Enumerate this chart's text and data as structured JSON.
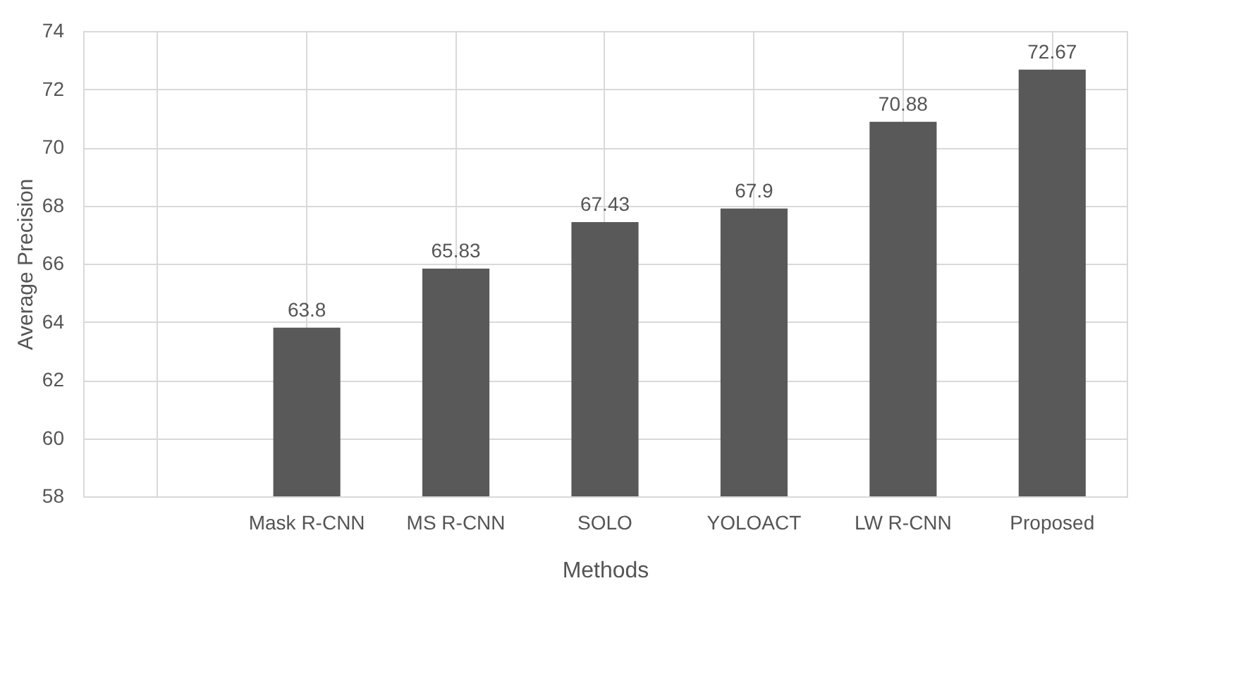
{
  "chart_data": {
    "type": "bar",
    "xlabel": "Methods",
    "ylabel": "Average Precision",
    "categories": [
      null,
      "Mask R-CNN",
      "MS R-CNN",
      "SOLO",
      "YOLOACT",
      "LW R-CNN",
      "Proposed"
    ],
    "values": [
      null,
      63.8,
      65.83,
      67.43,
      67.9,
      70.88,
      72.67
    ],
    "color": "#595959",
    "ylim": [
      58,
      74
    ],
    "yticks": [
      58,
      60,
      62,
      64,
      66,
      68,
      70,
      72,
      74
    ],
    "grid": true,
    "data_labels": true
  }
}
